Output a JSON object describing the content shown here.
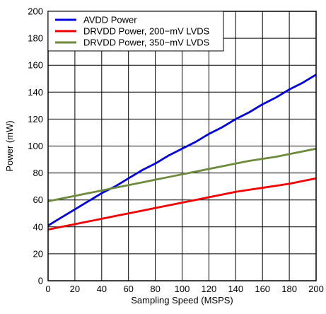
{
  "chart_data": {
    "type": "line",
    "title": "",
    "xlabel": "Sampling Speed (MSPS)",
    "ylabel": "Power (mW)",
    "xlim": [
      0,
      200
    ],
    "ylim": [
      0,
      200
    ],
    "xticks": [
      0,
      20,
      40,
      60,
      80,
      100,
      120,
      140,
      160,
      180,
      200
    ],
    "yticks": [
      0,
      20,
      40,
      60,
      80,
      100,
      120,
      140,
      160,
      180,
      200
    ],
    "grid": true,
    "legend_position": "top-left",
    "x": [
      0,
      10,
      20,
      30,
      40,
      50,
      60,
      70,
      80,
      90,
      100,
      110,
      120,
      130,
      140,
      150,
      160,
      170,
      180,
      190,
      200
    ],
    "series": [
      {
        "name": "AVDD Power",
        "color": "#0000e0",
        "values": [
          41,
          47,
          53,
          59,
          65,
          70,
          76,
          82,
          87,
          93,
          98,
          103,
          109,
          114,
          120,
          125,
          131,
          136,
          142,
          147,
          153
        ]
      },
      {
        "name": "DRVDD Power, 200−mV LVDS",
        "color": "#ee0000",
        "values": [
          38,
          40,
          42,
          44,
          46,
          48,
          50,
          52,
          54,
          56,
          58,
          60,
          62,
          64,
          66,
          67.5,
          69,
          70.5,
          72,
          74,
          76
        ]
      },
      {
        "name": "DRVDD Power, 350−mV LVDS",
        "color": "#6e8b3d",
        "values": [
          59,
          61,
          63,
          65,
          67,
          69,
          71,
          73,
          75,
          77,
          79,
          81,
          83,
          85,
          87,
          89,
          90.5,
          92,
          94,
          96,
          98
        ]
      }
    ]
  }
}
